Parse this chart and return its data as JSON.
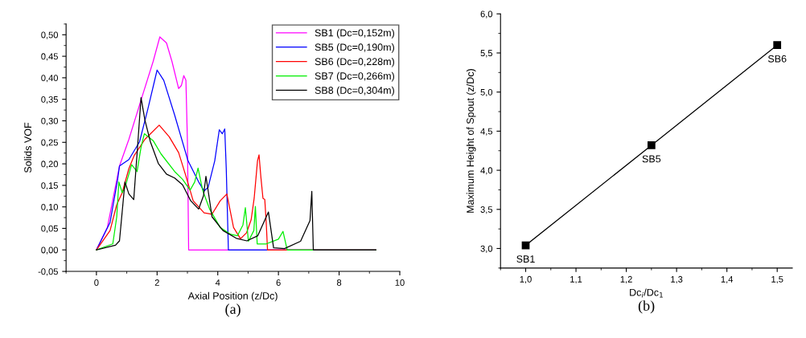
{
  "chart_data": [
    {
      "type": "line",
      "xlabel": "Axial Position (z/Dc)",
      "ylabel": "Solids VOF",
      "legend": "top right",
      "marker": "none",
      "line_style": "solid",
      "grid": false,
      "xlim": [
        -1,
        10
      ],
      "xticks": [
        0,
        2,
        4,
        6,
        8,
        10
      ],
      "ylim": [
        -0.05,
        0.525
      ],
      "yticks": [
        {
          "value": -0.05,
          "label": "-0,05"
        },
        {
          "value": 0,
          "label": "0,00"
        },
        {
          "value": 0.05,
          "label": "0,05"
        },
        {
          "value": 0.1,
          "label": "0,10"
        },
        {
          "value": 0.15,
          "label": "0,15"
        },
        {
          "value": 0.2,
          "label": "0,20"
        },
        {
          "value": 0.25,
          "label": "0,25"
        },
        {
          "value": 0.3,
          "label": "0,30"
        },
        {
          "value": 0.35,
          "label": "0,35"
        },
        {
          "value": 0.4,
          "label": "0,40"
        },
        {
          "value": 0.45,
          "label": "0,45"
        },
        {
          "value": 0.5,
          "label": "0,50"
        }
      ],
      "annotations": [
        "(a)"
      ],
      "series": [
        {
          "name": "SB1 (Dc=0,152m)",
          "color": "#ff00ff",
          "x": [
            0,
            0.36,
            0.76,
            1.07,
            1.51,
            1.87,
            2.09,
            2.31,
            2.49,
            2.71,
            2.8,
            2.88,
            2.95,
            3.0,
            3.04,
            9.21
          ],
          "values": [
            0,
            0.052,
            0.195,
            0.257,
            0.357,
            0.438,
            0.495,
            0.481,
            0.438,
            0.375,
            0.382,
            0.405,
            0.394,
            0.251,
            0,
            0
          ]
        },
        {
          "name": "SB5 (Dc=0,190m)",
          "color": "#0000ff",
          "x": [
            0,
            0.45,
            0.7,
            0.76,
            1.07,
            1.42,
            1.69,
            2.0,
            2.22,
            2.58,
            3.02,
            3.37,
            3.55,
            3.68,
            3.9,
            4.05,
            4.15,
            4.23,
            4.28,
            4.35,
            9.21
          ],
          "values": [
            0,
            0.064,
            0.164,
            0.195,
            0.21,
            0.251,
            0.326,
            0.418,
            0.394,
            0.313,
            0.207,
            0.158,
            0.137,
            0.145,
            0.207,
            0.279,
            0.27,
            0.281,
            0.189,
            0,
            0
          ]
        },
        {
          "name": "SB6 (Dc=0,228m)",
          "color": "#ff0000",
          "x": [
            0,
            0.45,
            0.67,
            0.85,
            1.07,
            1.25,
            1.6,
            2.07,
            2.4,
            2.71,
            2.93,
            3.19,
            3.55,
            3.81,
            4.08,
            4.3,
            4.52,
            4.75,
            4.95,
            5.1,
            5.2,
            5.31,
            5.36,
            5.42,
            5.49,
            5.55,
            5.6,
            5.64,
            9.21
          ],
          "values": [
            0,
            0.045,
            0.105,
            0.133,
            0.189,
            0.22,
            0.257,
            0.29,
            0.263,
            0.226,
            0.176,
            0.114,
            0.086,
            0.083,
            0.114,
            0.13,
            0.052,
            0.026,
            0.04,
            0.07,
            0.12,
            0.207,
            0.221,
            0.17,
            0.12,
            0.117,
            0.06,
            0,
            0
          ]
        },
        {
          "name": "SB7 (Dc=0,266m)",
          "color": "#00ee00",
          "x": [
            0,
            0.54,
            0.67,
            0.74,
            0.85,
            0.94,
            1.07,
            1.16,
            1.34,
            1.47,
            1.58,
            1.87,
            2.13,
            2.58,
            2.84,
            3.09,
            3.24,
            3.35,
            3.5,
            3.73,
            4.08,
            4.43,
            4.65,
            4.83,
            4.91,
            5.01,
            5.19,
            5.24,
            5.3,
            5.6,
            6.0,
            6.15,
            6.29,
            9.21
          ],
          "values": [
            0,
            0.014,
            0.077,
            0.158,
            0.133,
            0.145,
            0.176,
            0.198,
            0.182,
            0.238,
            0.27,
            0.254,
            0.223,
            0.182,
            0.164,
            0.139,
            0.158,
            0.19,
            0.139,
            0.095,
            0.052,
            0.036,
            0.033,
            0.058,
            0.098,
            0.02,
            0.045,
            0.101,
            0.014,
            0.014,
            0.025,
            0.043,
            0,
            0
          ]
        },
        {
          "name": "SB8 (Dc=0,304m)",
          "color": "#000000",
          "x": [
            0,
            0.63,
            0.76,
            0.85,
            0.94,
            1.07,
            1.23,
            1.38,
            1.47,
            1.6,
            1.78,
            2.04,
            2.31,
            2.58,
            2.84,
            3.11,
            3.37,
            3.53,
            3.61,
            3.68,
            3.81,
            4.17,
            4.61,
            4.96,
            5.32,
            5.67,
            5.84,
            6.2,
            6.73,
            7.04,
            7.1,
            7.15,
            9.21
          ],
          "values": [
            0,
            0.011,
            0.021,
            0.089,
            0.158,
            0.13,
            0.117,
            0.263,
            0.354,
            0.301,
            0.251,
            0.201,
            0.176,
            0.167,
            0.151,
            0.114,
            0.095,
            0.126,
            0.171,
            0.139,
            0.077,
            0.045,
            0.027,
            0.021,
            0.033,
            0.088,
            0.005,
            0.003,
            0.02,
            0.068,
            0.136,
            0,
            0
          ]
        }
      ]
    },
    {
      "type": "line",
      "xlabel": "Dc$_{i}$/Dc$_{1}$",
      "ylabel": "Maximum Height of Spout (z/Dc)",
      "marker": "square",
      "line_style": "solid",
      "grid": false,
      "legend": false,
      "xlim": [
        0.95,
        1.53
      ],
      "xticks": [
        {
          "value": 1.0,
          "label": "1,0"
        },
        {
          "value": 1.1,
          "label": "1,1"
        },
        {
          "value": 1.2,
          "label": "1,2"
        },
        {
          "value": 1.3,
          "label": "1,3"
        },
        {
          "value": 1.4,
          "label": "1,4"
        },
        {
          "value": 1.5,
          "label": "1,5"
        }
      ],
      "ylim": [
        2.75,
        6.0
      ],
      "yticks": [
        {
          "value": 3.0,
          "label": "3,0"
        },
        {
          "value": 3.5,
          "label": "3,5"
        },
        {
          "value": 4.0,
          "label": "4,0"
        },
        {
          "value": 4.5,
          "label": "4,5"
        },
        {
          "value": 5.0,
          "label": "5,0"
        },
        {
          "value": 5.5,
          "label": "5,5"
        },
        {
          "value": 6.0,
          "label": "6,0"
        }
      ],
      "annotations": [
        {
          "text": "SB1",
          "x": 1.0,
          "y": 3.04
        },
        {
          "text": "SB5",
          "x": 1.25,
          "y": 4.32
        },
        {
          "text": "SB6",
          "x": 1.5,
          "y": 5.6
        },
        "(b)"
      ],
      "series": [
        {
          "color": "#000000",
          "x": [
            1.0,
            1.25,
            1.5
          ],
          "values": [
            3.04,
            4.32,
            5.6
          ]
        }
      ]
    }
  ]
}
